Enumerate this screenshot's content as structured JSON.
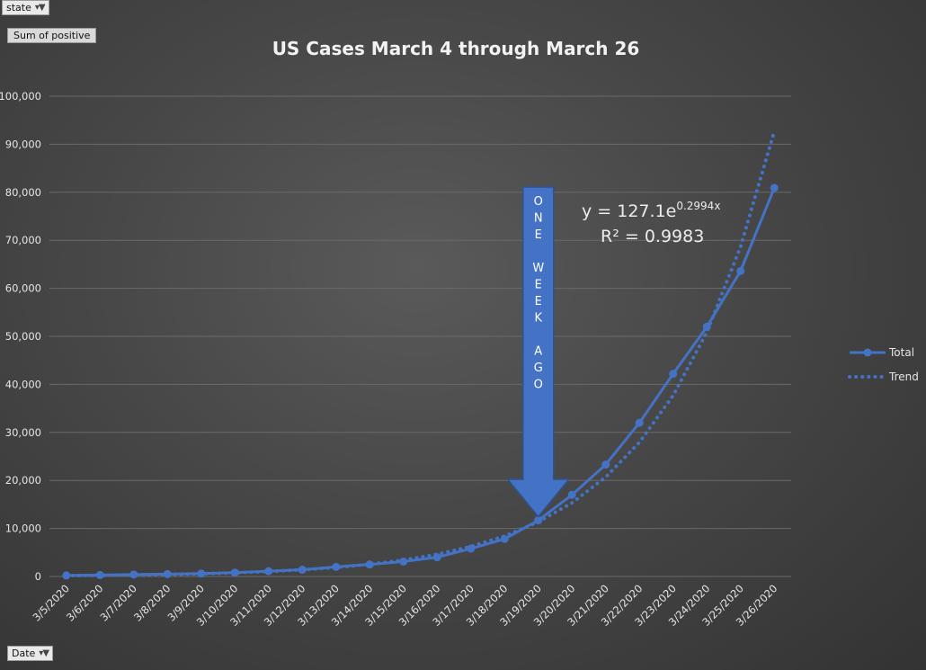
{
  "filters": {
    "state_label": "state",
    "values_label": "Sum of positive",
    "date_label": "Date"
  },
  "colors": {
    "series": "#4472c4",
    "grid": "#6a6a6a",
    "arrow_fill": "#4472c4",
    "arrow_stroke": "#2f528f"
  },
  "annotations": {
    "arrow_letters": [
      "O",
      "N",
      "E",
      "",
      "W",
      "E",
      "E",
      "K",
      "",
      "A",
      "G",
      "O"
    ],
    "equation_base": "y = 127.1e",
    "equation_exp": "0.2994x",
    "r_squared": "R² = 0.9983"
  },
  "chart_data": {
    "type": "line",
    "title": "US Cases March 4 through March 26",
    "xlabel": "",
    "ylabel": "",
    "ylim": [
      0,
      100000
    ],
    "yticks": [
      0,
      10000,
      20000,
      30000,
      40000,
      50000,
      60000,
      70000,
      80000,
      90000,
      100000
    ],
    "ytick_labels": [
      "0",
      "10,000",
      "20,000",
      "30,000",
      "40,000",
      "50,000",
      "60,000",
      "70,000",
      "80,000",
      "90,000",
      "100,000"
    ],
    "grid": true,
    "legend_position": "right",
    "categories": [
      "3/5/2020",
      "3/6/2020",
      "3/7/2020",
      "3/8/2020",
      "3/9/2020",
      "3/10/2020",
      "3/11/2020",
      "3/12/2020",
      "3/13/2020",
      "3/14/2020",
      "3/15/2020",
      "3/16/2020",
      "3/17/2020",
      "3/18/2020",
      "3/19/2020",
      "3/20/2020",
      "3/21/2020",
      "3/22/2020",
      "3/23/2020",
      "3/24/2020",
      "3/25/2020",
      "3/26/2020"
    ],
    "series": [
      {
        "name": "Total",
        "style": "solid-markers",
        "values": [
          200,
          300,
          400,
          500,
          600,
          800,
          1100,
          1400,
          2000,
          2500,
          3100,
          4000,
          5800,
          7800,
          11700,
          17000,
          23300,
          32000,
          42200,
          52000,
          63600,
          80900
        ]
      },
      {
        "name": "Trend",
        "style": "dotted",
        "values": [
          171,
          230,
          311,
          419,
          566,
          764,
          1031,
          1392,
          1879,
          2536,
          3422,
          4619,
          6235,
          8415,
          11358,
          15330,
          20691,
          27927,
          37694,
          50876,
          68668,
          92682
        ]
      }
    ]
  }
}
